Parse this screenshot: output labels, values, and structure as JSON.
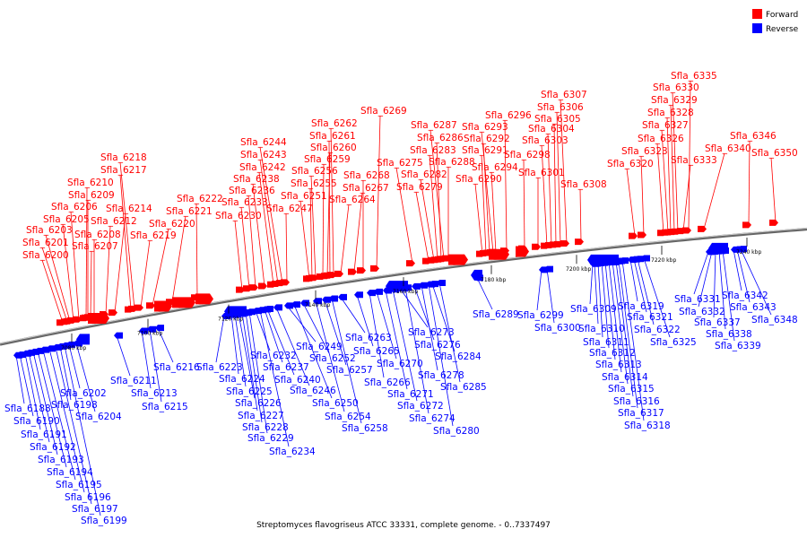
{
  "colors": {
    "forward": "#ff0000",
    "reverse": "#0000ff",
    "backbone": "#888888"
  },
  "legend": [
    {
      "label": "Forward",
      "strand": "forward"
    },
    {
      "label": "Reverse",
      "strand": "reverse"
    }
  ],
  "caption": "Streptomyces flavogriseus ATCC 33331, complete genome. - 0..7337497",
  "ticks": [
    "7080 kbp",
    "7100 kbp",
    "7120 kbp",
    "7140 kbp",
    "7160 kbp",
    "7180 kbp",
    "7200 kbp",
    "7220 kbp",
    "7240 kbp"
  ],
  "forward_genes": [
    "Sfla_6200",
    "Sfla_6201",
    "Sfla_6203",
    "Sfla_6205",
    "Sfla_6206",
    "Sfla_6207",
    "Sfla_6208",
    "Sfla_6209",
    "Sfla_6210",
    "Sfla_6212",
    "Sfla_6214",
    "Sfla_6217",
    "Sfla_6218",
    "Sfla_6219",
    "Sfla_6220",
    "Sfla_6221",
    "Sfla_6222",
    "Sfla_6230",
    "Sfla_6233",
    "Sfla_6236",
    "Sfla_6238",
    "Sfla_6242",
    "Sfla_6243",
    "Sfla_6244",
    "Sfla_6247",
    "Sfla_6251",
    "Sfla_6255",
    "Sfla_6256",
    "Sfla_6259",
    "Sfla_6260",
    "Sfla_6261",
    "Sfla_6262",
    "Sfla_6264",
    "Sfla_6267",
    "Sfla_6268",
    "Sfla_6269",
    "Sfla_6275",
    "Sfla_6279",
    "Sfla_6282",
    "Sfla_6283",
    "Sfla_6286",
    "Sfla_6287",
    "Sfla_6288",
    "Sfla_6290",
    "Sfla_6291",
    "Sfla_6292",
    "Sfla_6293",
    "Sfla_6294",
    "Sfla_6296",
    "Sfla_6298",
    "Sfla_6301",
    "Sfla_6303",
    "Sfla_6304",
    "Sfla_6305",
    "Sfla_6306",
    "Sfla_6307",
    "Sfla_6308",
    "Sfla_6320",
    "Sfla_6323",
    "Sfla_6326",
    "Sfla_6327",
    "Sfla_6328",
    "Sfla_6329",
    "Sfla_6330",
    "Sfla_6333",
    "Sfla_6335",
    "Sfla_6340",
    "Sfla_6346",
    "Sfla_6350"
  ],
  "reverse_genes": [
    "Sfla_6188",
    "Sfla_6190",
    "Sfla_6191",
    "Sfla_6192",
    "Sfla_6193",
    "Sfla_6194",
    "Sfla_6195",
    "Sfla_6196",
    "Sfla_6197",
    "Sfla_6198",
    "Sfla_6199",
    "Sfla_6202",
    "Sfla_6204",
    "Sfla_6211",
    "Sfla_6213",
    "Sfla_6215",
    "Sfla_6216",
    "Sfla_6223",
    "Sfla_6224",
    "Sfla_6225",
    "Sfla_6226",
    "Sfla_6227",
    "Sfla_6228",
    "Sfla_6229",
    "Sfla_6232",
    "Sfla_6234",
    "Sfla_6237",
    "Sfla_6240",
    "Sfla_6246",
    "Sfla_6249",
    "Sfla_6250",
    "Sfla_6252",
    "Sfla_6254",
    "Sfla_6257",
    "Sfla_6258",
    "Sfla_6263",
    "Sfla_6265",
    "Sfla_6266",
    "Sfla_6270",
    "Sfla_6271",
    "Sfla_6272",
    "Sfla_6273",
    "Sfla_6274",
    "Sfla_6276",
    "Sfla_6278",
    "Sfla_6280",
    "Sfla_6284",
    "Sfla_6285",
    "Sfla_6289",
    "Sfla_6299",
    "Sfla_6300",
    "Sfla_6309",
    "Sfla_6310",
    "Sfla_6311",
    "Sfla_6312",
    "Sfla_6313",
    "Sfla_6314",
    "Sfla_6315",
    "Sfla_6316",
    "Sfla_6317",
    "Sfla_6318",
    "Sfla_6319",
    "Sfla_6321",
    "Sfla_6322",
    "Sfla_6325",
    "Sfla_6331",
    "Sfla_6332",
    "Sfla_6337",
    "Sfla_6338",
    "Sfla_6339",
    "Sfla_6342",
    "Sfla_6343",
    "Sfla_6348"
  ]
}
